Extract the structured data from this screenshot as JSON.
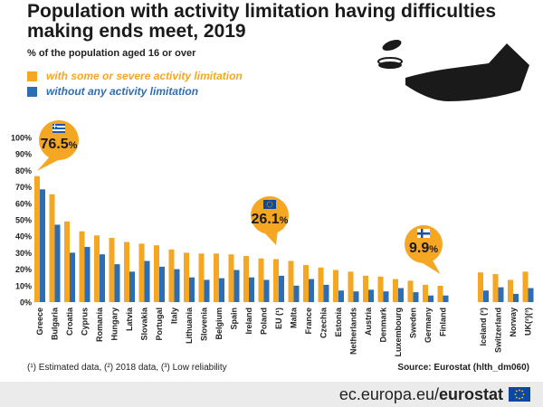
{
  "title": "Population with activity limitation having difficulties making ends meet, 2019",
  "subtitle": "% of the population aged 16 or over",
  "footnote": "(¹) Estimated data, (²) 2018 data, (³) Low reliability",
  "source": "Source: Eurostat (hlth_dm060)",
  "footer": {
    "domain": "ec.europa.eu/",
    "brand": "eurostat"
  },
  "colors": {
    "limitation": "#f5a623",
    "without": "#2d6db4",
    "callout": "#f5a623"
  },
  "callouts": [
    {
      "label": "76.5",
      "unit": "%",
      "country": "Greece",
      "flag": "greece-flag"
    },
    {
      "label": "26.1",
      "unit": "%",
      "country": "EU (¹)",
      "flag": "eu-flag"
    },
    {
      "label": "9.9",
      "unit": "%",
      "country": "Finland",
      "flag": "finland-flag"
    }
  ],
  "chart_data": {
    "type": "bar",
    "title": "Population with activity limitation having difficulties making ends meet, 2019",
    "subtitle": "% of the population aged 16 or over",
    "ylim": [
      0,
      100
    ],
    "yticks": [
      "0%",
      "10%",
      "20%",
      "30%",
      "40%",
      "50%",
      "60%",
      "70%",
      "80%",
      "90%",
      "100%"
    ],
    "grid": false,
    "legend": "top-left",
    "categories": [
      "Greece",
      "Bulgaria",
      "Croatia",
      "Cyprus",
      "Romania",
      "Hungary",
      "Latvia",
      "Slovakia",
      "Portugal",
      "Italy",
      "Lithuania",
      "Slovenia",
      "Belgium",
      "Spain",
      "Ireland",
      "Poland",
      "EU (¹)",
      "Malta",
      "France",
      "Czechia",
      "Estonia",
      "Netherlands",
      "Austria",
      "Denmark",
      "Luxembourg",
      "Sweden",
      "Germany",
      "Finland",
      "Iceland (²)",
      "Switzerland",
      "Norway",
      "UK(²)(³)"
    ],
    "series": [
      {
        "name": "with some or severe activity limitation",
        "values": [
          76.5,
          65.5,
          49,
          43,
          40.5,
          39,
          36.5,
          35.5,
          34.5,
          32,
          30,
          29.5,
          29.5,
          29,
          28,
          26.5,
          26.1,
          25,
          22.5,
          21,
          19.5,
          18.5,
          16,
          15.5,
          14,
          13,
          10.5,
          9.9,
          18,
          17,
          13.5,
          18.5
        ]
      },
      {
        "name": "without any activity limitation",
        "values": [
          68.5,
          47,
          30,
          33.5,
          29,
          23,
          18.5,
          25,
          21.5,
          20,
          15,
          13.5,
          14.5,
          19.5,
          15,
          13.5,
          16,
          10,
          14,
          10.5,
          7,
          6.5,
          7.5,
          6.5,
          8.5,
          6,
          4,
          4,
          7,
          9,
          5,
          8.5
        ]
      }
    ]
  }
}
